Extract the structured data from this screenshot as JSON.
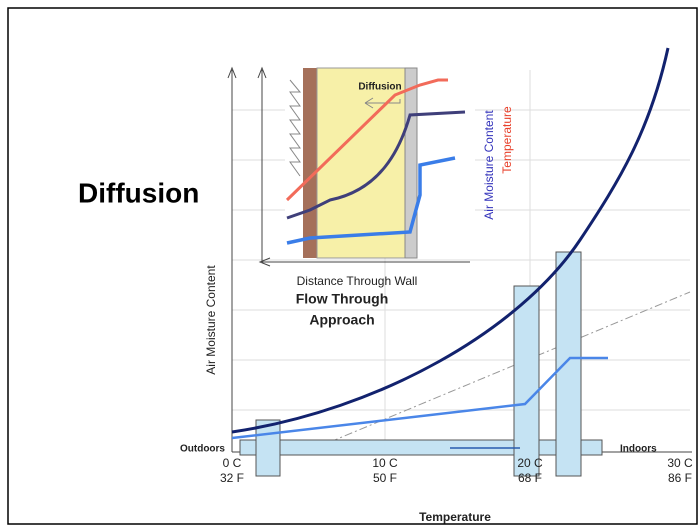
{
  "title": "Diffusion",
  "inset": {
    "label": "Diffusion",
    "x_axis": "Distance Through Wall",
    "y_axis_moisture": "Air Moisture Content",
    "y_axis_temperature": "Temperature",
    "caption": [
      "Flow Through",
      "Approach"
    ]
  },
  "main": {
    "y_axis": "Air Moisture Content",
    "x_axis": "Temperature",
    "outdoors": "Outdoors",
    "indoors": "Indoors",
    "ticks": [
      {
        "c": "0 C",
        "f": "32 F"
      },
      {
        "c": "10 C",
        "f": "50 F"
      },
      {
        "c": "20 C",
        "f": "68 F"
      },
      {
        "c": "30 C",
        "f": "86 F"
      }
    ]
  }
}
